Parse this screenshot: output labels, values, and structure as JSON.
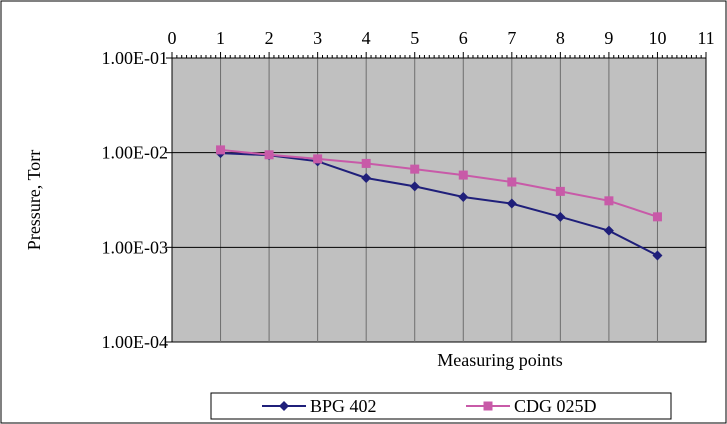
{
  "chart_data": {
    "type": "line",
    "title": "",
    "xlabel": "Measuring points",
    "ylabel": "Pressure, Torr",
    "x_ticks": [
      "0",
      "1",
      "2",
      "3",
      "4",
      "5",
      "6",
      "7",
      "8",
      "9",
      "10",
      "11"
    ],
    "xlim": [
      0,
      11
    ],
    "y_scale": "log",
    "ylim": [
      0.0001,
      0.1
    ],
    "y_ticks": [
      {
        "value": 0.1,
        "label": "1.00E-01"
      },
      {
        "value": 0.01,
        "label": "1.00E-02"
      },
      {
        "value": 0.001,
        "label": "1.00E-03"
      },
      {
        "value": 0.0001,
        "label": "1.00E-04"
      }
    ],
    "grid": "on",
    "plot_background": "#c0c0c0",
    "legend_position": "bottom",
    "x": [
      1,
      2,
      3,
      4,
      5,
      6,
      7,
      8,
      9,
      10
    ],
    "series": [
      {
        "name": "BPG 402",
        "color": "#1f1f7a",
        "marker": "diamond",
        "values": [
          0.0099,
          0.0094,
          0.0081,
          0.0054,
          0.0044,
          0.0034,
          0.0029,
          0.0021,
          0.0015,
          0.00082
        ]
      },
      {
        "name": "CDG 025D",
        "color": "#c85aa8",
        "marker": "square",
        "values": [
          0.0107,
          0.0095,
          0.0086,
          0.0077,
          0.0067,
          0.0058,
          0.0049,
          0.0039,
          0.0031,
          0.0021
        ]
      }
    ]
  }
}
